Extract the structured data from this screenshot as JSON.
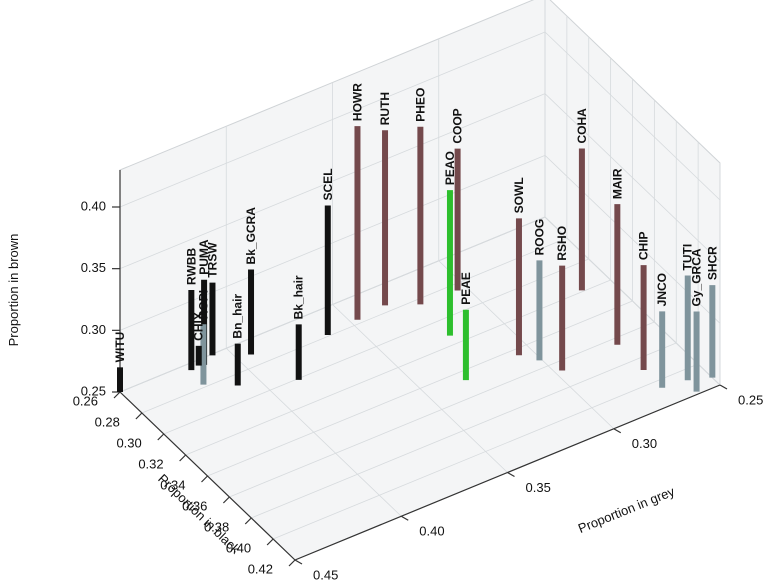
{
  "chart_data": {
    "type": "stem3d",
    "xlabel": "Proportion in black",
    "ylabel": "Proportion in grey",
    "zlabel": "Proportion in brown",
    "xlim": [
      0.26,
      0.42
    ],
    "ylim": [
      0.25,
      0.45
    ],
    "zlim": [
      0.25,
      0.43
    ],
    "xticks": [
      0.26,
      0.28,
      {
        "value": 0.3,
        "label": "0.30"
      },
      0.32,
      0.34,
      0.36,
      0.38,
      {
        "value": 0.4,
        "label": "0.40"
      },
      0.42
    ],
    "yticks": [
      0.25,
      {
        "value": 0.3,
        "label": "0.30"
      },
      0.35,
      {
        "value": 0.4,
        "label": "0.40"
      },
      0.45
    ],
    "zticks": [
      0.25,
      {
        "value": 0.3,
        "label": "0.30"
      },
      0.35,
      {
        "value": 0.4,
        "label": "0.40"
      }
    ],
    "grid": true,
    "points": [
      {
        "label": "WITU",
        "x": 0.26,
        "y": 0.45,
        "z": 0.27,
        "color": "#111111",
        "label_color": "#111111"
      },
      {
        "label": "RWBB",
        "x": 0.265,
        "y": 0.419,
        "z": 0.315,
        "color": "#111111",
        "label_color": "#111111"
      },
      {
        "label": "PUMA",
        "x": 0.265,
        "y": 0.413,
        "z": 0.319,
        "color": "#111111",
        "label_color": "#111111"
      },
      {
        "label": "ROPI",
        "x": 0.278,
        "y": 0.42,
        "z": 0.299,
        "color": "#7f949c",
        "label_color": "#7f949c"
      },
      {
        "label": "CHIX",
        "x": 0.264,
        "y": 0.415,
        "z": 0.266,
        "color": "#111111",
        "label_color": "#111111"
      },
      {
        "label": "TRSW",
        "x": 0.261,
        "y": 0.407,
        "z": 0.309,
        "color": "#111111",
        "label_color": "#111111"
      },
      {
        "label": "Bn_hair",
        "x": 0.288,
        "y": 0.409,
        "z": 0.284,
        "color": "#111111",
        "label_color": "#111111"
      },
      {
        "label": "Bk_GCRA",
        "x": 0.271,
        "y": 0.394,
        "z": 0.319,
        "color": "#111111",
        "label_color": "#111111"
      },
      {
        "label": "Bk_hair",
        "x": 0.301,
        "y": 0.387,
        "z": 0.295,
        "color": "#111111",
        "label_color": "#111111"
      },
      {
        "label": "SCEL",
        "x": 0.279,
        "y": 0.362,
        "z": 0.355,
        "color": "#111111",
        "label_color": "#111111"
      },
      {
        "label": "HOWR",
        "x": 0.277,
        "y": 0.347,
        "z": 0.407,
        "color": "#74494c",
        "label_color": "#111111"
      },
      {
        "label": "RUTH",
        "x": 0.275,
        "y": 0.333,
        "z": 0.392,
        "color": "#74494c",
        "label_color": "#111111"
      },
      {
        "label": "PHEO",
        "x": 0.284,
        "y": 0.321,
        "z": 0.394,
        "color": "#74494c",
        "label_color": "#111111"
      },
      {
        "label": "COOP",
        "x": 0.285,
        "y": 0.304,
        "z": 0.365,
        "color": "#74494c",
        "label_color": "#111111"
      },
      {
        "label": "PEAO",
        "x": 0.313,
        "y": 0.322,
        "z": 0.368,
        "color": "#2dbf2d",
        "label_color": "#2dbf2d"
      },
      {
        "label": "PEAE",
        "x": 0.347,
        "y": 0.332,
        "z": 0.307,
        "color": "#2dbf2d",
        "label_color": "#2dbf2d"
      },
      {
        "label": "COHA",
        "x": 0.319,
        "y": 0.263,
        "z": 0.365,
        "color": "#74494c",
        "label_color": "#111111"
      },
      {
        "label": "SOWL",
        "x": 0.345,
        "y": 0.306,
        "z": 0.361,
        "color": "#74494c",
        "label_color": "#111111"
      },
      {
        "label": "ROOG",
        "x": 0.354,
        "y": 0.301,
        "z": 0.331,
        "color": "#7f949c",
        "label_color": "#7f949c"
      },
      {
        "label": "RSHO",
        "x": 0.367,
        "y": 0.297,
        "z": 0.335,
        "color": "#74494c",
        "label_color": "#111111"
      },
      {
        "label": "MAIR",
        "x": 0.365,
        "y": 0.27,
        "z": 0.364,
        "color": "#74494c",
        "label_color": "#111111"
      },
      {
        "label": "CHIP",
        "x": 0.389,
        "y": 0.27,
        "z": 0.335,
        "color": "#74494c",
        "label_color": "#111111"
      },
      {
        "label": "JNCO",
        "x": 0.406,
        "y": 0.27,
        "z": 0.312,
        "color": "#7f949c",
        "label_color": "#7f949c"
      },
      {
        "label": "TUTI",
        "x": 0.408,
        "y": 0.259,
        "z": 0.335,
        "color": "#7f949c",
        "label_color": "#7f949c"
      },
      {
        "label": "Gy_GRCA",
        "x": 0.418,
        "y": 0.26,
        "z": 0.315,
        "color": "#7f949c",
        "label_color": "#7f949c"
      },
      {
        "label": "SHCR",
        "x": 0.413,
        "y": 0.25,
        "z": 0.325,
        "color": "#7f949c",
        "label_color": "#7f949c"
      }
    ]
  }
}
